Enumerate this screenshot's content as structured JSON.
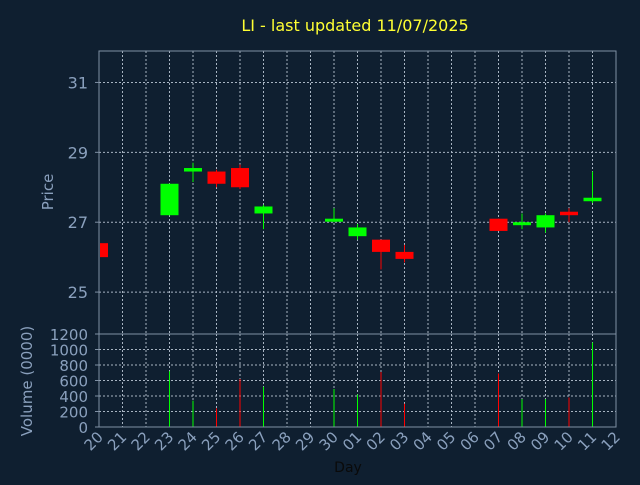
{
  "chart_data": {
    "type": "candlestick",
    "title": "LI - last updated 11/07/2025",
    "xlabel": "Day",
    "price_ylabel": "Price",
    "volume_ylabel": "Volume (0000)",
    "price_ylim": [
      23.8,
      31.9
    ],
    "price_yticks": [
      25,
      27,
      29,
      31
    ],
    "volume_ylim": [
      0,
      1200
    ],
    "volume_yticks": [
      0,
      200,
      400,
      600,
      800,
      1000,
      1200
    ],
    "x_tick_labels": [
      "20",
      "21",
      "22",
      "23",
      "24",
      "25",
      "26",
      "27",
      "28",
      "29",
      "30",
      "01",
      "02",
      "03",
      "04",
      "05",
      "06",
      "07",
      "08",
      "09",
      "10",
      "11",
      "12"
    ],
    "grid": true,
    "colors": {
      "background": "#0f1f30",
      "axis": "#7f90a4",
      "tick_text": "#8aa0bd",
      "title": "#ffff33",
      "grid": "#a8b4c2",
      "up": "#00ff00",
      "down": "#ff0000"
    },
    "candles": [
      {
        "day": "20",
        "open": 26.4,
        "high": 26.45,
        "low": 25.95,
        "close": 26.0,
        "volume": 0
      },
      {
        "day": "23",
        "open": 27.2,
        "high": 28.1,
        "low": 27.2,
        "close": 28.1,
        "volume": 720
      },
      {
        "day": "24",
        "open": 28.45,
        "high": 28.7,
        "low": 28.15,
        "close": 28.55,
        "volume": 340
      },
      {
        "day": "25",
        "open": 28.45,
        "high": 28.5,
        "low": 28.0,
        "close": 28.1,
        "volume": 240
      },
      {
        "day": "26",
        "open": 28.55,
        "high": 28.65,
        "low": 27.95,
        "close": 28.0,
        "volume": 620
      },
      {
        "day": "27",
        "open": 27.25,
        "high": 27.5,
        "low": 26.8,
        "close": 27.45,
        "volume": 520
      },
      {
        "day": "30",
        "open": 27.05,
        "high": 27.4,
        "low": 27.0,
        "close": 27.1,
        "volume": 490
      },
      {
        "day": "01",
        "open": 26.6,
        "high": 26.95,
        "low": 26.5,
        "close": 26.85,
        "volume": 420
      },
      {
        "day": "02",
        "open": 26.5,
        "high": 26.5,
        "low": 25.65,
        "close": 26.15,
        "volume": 710
      },
      {
        "day": "03",
        "open": 26.15,
        "high": 26.35,
        "low": 25.85,
        "close": 25.95,
        "volume": 300
      },
      {
        "day": "07",
        "open": 27.1,
        "high": 27.1,
        "low": 26.75,
        "close": 26.75,
        "volume": 690
      },
      {
        "day": "08",
        "open": 26.95,
        "high": 27.25,
        "low": 26.8,
        "close": 27.0,
        "volume": 360
      },
      {
        "day": "09",
        "open": 26.85,
        "high": 27.25,
        "low": 26.7,
        "close": 27.2,
        "volume": 360
      },
      {
        "day": "10",
        "open": 27.3,
        "high": 27.4,
        "low": 27.0,
        "close": 27.2,
        "volume": 380
      },
      {
        "day": "11",
        "open": 27.6,
        "high": 28.45,
        "low": 27.55,
        "close": 27.7,
        "volume": 1090
      }
    ]
  }
}
